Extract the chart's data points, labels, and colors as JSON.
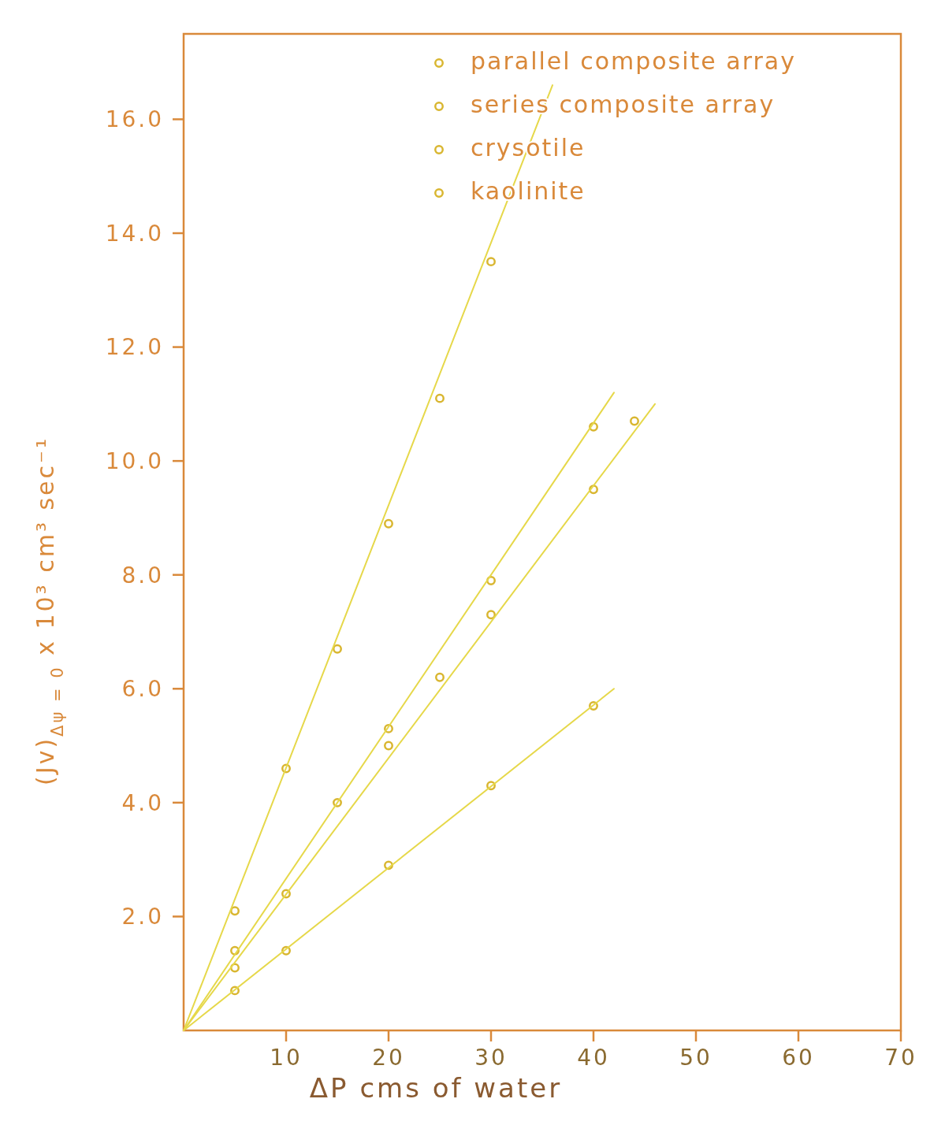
{
  "chart_data": {
    "type": "scatter",
    "xlabel": "ΔP cms of water",
    "ylabel": "(Jv)$_{Δψ = 0}$ x 10³ cm³ sec⁻¹",
    "xlim": [
      0,
      70
    ],
    "xticks": [
      10,
      20,
      30,
      40,
      50,
      60,
      70
    ],
    "ylim": [
      0,
      17.5
    ],
    "yticks": [
      {
        "value": 2,
        "label": "2.0"
      },
      {
        "value": 4,
        "label": "4.0"
      },
      {
        "value": 6,
        "label": "6.0"
      },
      {
        "value": 8,
        "label": "8.0"
      },
      {
        "value": 10,
        "label": "10.0"
      },
      {
        "value": 12,
        "label": "12.0"
      },
      {
        "value": 14,
        "label": "14.0"
      },
      {
        "value": 16,
        "label": "16.0"
      }
    ],
    "grid": false,
    "legend": "top right",
    "marker": "circle",
    "series": [
      {
        "name": "parallel composite array",
        "color": "#d9b630",
        "x": [
          5,
          10,
          15,
          20,
          25,
          30
        ],
        "values": [
          2.1,
          4.6,
          6.7,
          8.9,
          11.1,
          13.5
        ]
      },
      {
        "name": "series composite array",
        "color": "#d9b630",
        "x": [
          5,
          15,
          20,
          30,
          40
        ],
        "values": [
          1.4,
          4.0,
          5.3,
          7.9,
          10.6
        ]
      },
      {
        "name": "crysotile",
        "color": "#d9b630",
        "x": [
          5,
          10,
          20,
          25,
          30,
          40,
          44
        ],
        "values": [
          1.1,
          2.4,
          5.0,
          6.2,
          7.3,
          9.5,
          10.7
        ]
      },
      {
        "name": "kaolinite",
        "color": "#d9b630",
        "x": [
          5,
          10,
          20,
          30,
          40
        ],
        "values": [
          0.7,
          1.4,
          2.9,
          4.3,
          5.7
        ]
      },
      {
        "type": "line",
        "marker": "none",
        "color": "#e6d84a",
        "x": [
          0,
          36
        ],
        "values": [
          0,
          16.6
        ]
      },
      {
        "type": "line",
        "marker": "none",
        "color": "#e6d84a",
        "x": [
          0,
          42
        ],
        "values": [
          0,
          11.2
        ]
      },
      {
        "type": "line",
        "marker": "none",
        "color": "#e6d84a",
        "x": [
          0,
          46
        ],
        "values": [
          0,
          11.0
        ]
      },
      {
        "type": "line",
        "marker": "none",
        "color": "#e6d84a",
        "x": [
          0,
          42
        ],
        "values": [
          0,
          6.0
        ]
      }
    ]
  }
}
